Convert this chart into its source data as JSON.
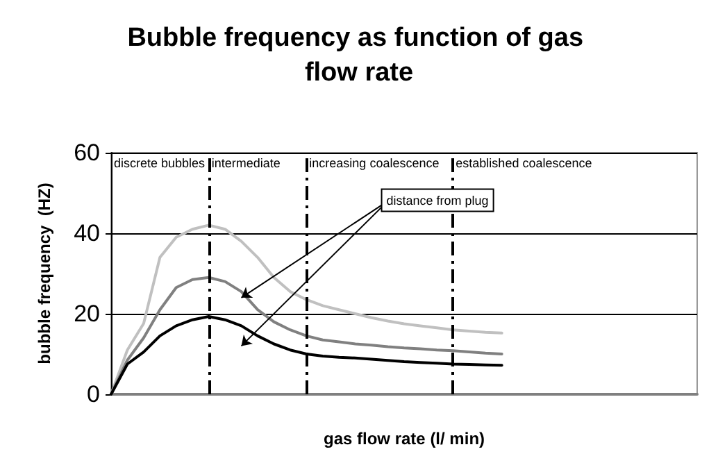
{
  "chart_data": {
    "type": "line",
    "title": "Bubble frequency as function of gas flow rate",
    "xlabel": "gas flow rate (l/ min)",
    "ylabel": "bubble frequency  (HZ)",
    "categories": [
      null,
      null,
      null,
      null,
      null,
      null,
      null,
      null,
      null,
      null,
      null,
      null,
      null,
      null,
      null,
      null,
      null,
      null,
      null,
      null,
      null,
      null,
      null,
      null,
      null,
      null,
      null,
      null,
      null,
      null,
      null,
      null,
      null,
      null,
      null,
      null,
      null
    ],
    "ylim": [
      0,
      60
    ],
    "yticks": [
      0,
      20,
      40,
      60
    ],
    "tick_labels": "y",
    "grid": true,
    "marker": "none",
    "series": [
      {
        "color": "#c0c0c0",
        "values": [
          0,
          11,
          17.6,
          34,
          39,
          41,
          42,
          41,
          38,
          34,
          29,
          25.5,
          23.5,
          22,
          21,
          20,
          19,
          18.2,
          17.5,
          17,
          16.5,
          16,
          15.7,
          15.4,
          15.2,
          null,
          null,
          null,
          null,
          null,
          null,
          null,
          null,
          null,
          null,
          null,
          null
        ]
      },
      {
        "color": "#808080",
        "values": [
          0,
          8.5,
          14,
          21,
          26.5,
          28.5,
          29,
          28,
          25.5,
          21,
          18,
          16,
          14.5,
          13.5,
          13,
          12.5,
          12.2,
          11.8,
          11.5,
          11.3,
          11,
          10.8,
          10.5,
          10.2,
          10,
          null,
          null,
          null,
          null,
          null,
          null,
          null,
          null,
          null,
          null,
          null,
          null
        ]
      },
      {
        "color": "#000000",
        "values": [
          0,
          7.5,
          10.5,
          14.5,
          17,
          18.5,
          19.3,
          18.5,
          17,
          14.5,
          12.5,
          11,
          10,
          9.5,
          9.2,
          9,
          8.7,
          8.4,
          8.1,
          7.9,
          7.7,
          7.5,
          7.4,
          7.3,
          7.2,
          null,
          null,
          null,
          null,
          null,
          null,
          null,
          null,
          null,
          null,
          null,
          null
        ]
      }
    ],
    "annotations": [
      "discrete bubbles",
      "intermediate",
      "increasing coalescence",
      "established coalescence",
      "distance from plug"
    ]
  }
}
